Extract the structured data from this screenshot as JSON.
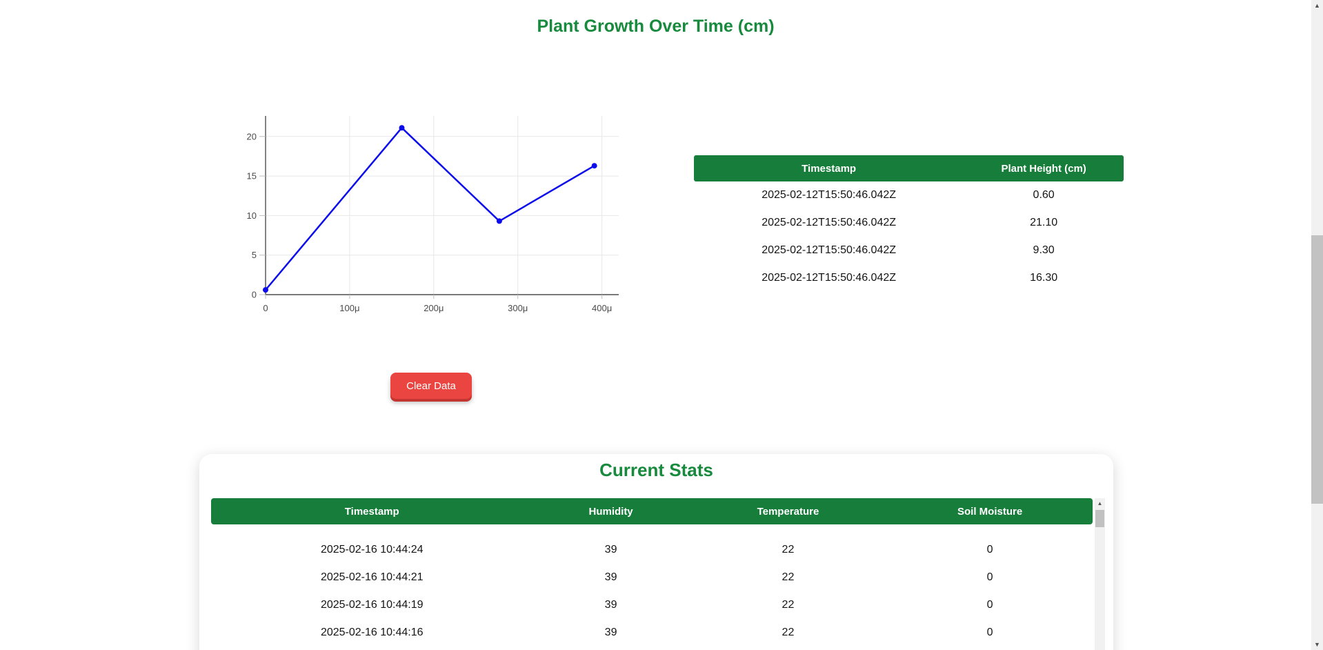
{
  "page": {
    "growth_title": "Plant Growth Over Time (cm)",
    "stats_title": "Current Stats",
    "clear_button_label": "Clear Data"
  },
  "colors": {
    "title_green": "#178a3d",
    "table_header_green": "#177d3a",
    "line_blue": "#0b0bec",
    "button_red": "#ea4540",
    "button_red_shadow": "#c23531"
  },
  "chart_data": {
    "type": "line",
    "title": "Plant Growth Over Time (cm)",
    "x_microseconds": [
      0,
      162,
      278,
      391
    ],
    "values": [
      0.6,
      21.1,
      9.3,
      16.3
    ],
    "x_tick_labels": [
      "0",
      "100μ",
      "200μ",
      "300μ",
      "400μ"
    ],
    "x_tick_values": [
      0,
      100,
      200,
      300,
      400
    ],
    "y_ticks": [
      0,
      5,
      10,
      15,
      20
    ],
    "xlim": [
      0,
      420
    ],
    "ylim": [
      0,
      22.6
    ],
    "grid": true,
    "legend": "none",
    "line_color": "#0b0bec"
  },
  "growth_table": {
    "headers": [
      "Timestamp",
      "Plant Height (cm)"
    ],
    "rows": [
      {
        "timestamp": "2025-02-12T15:50:46.042Z",
        "height": "0.60"
      },
      {
        "timestamp": "2025-02-12T15:50:46.042Z",
        "height": "21.10"
      },
      {
        "timestamp": "2025-02-12T15:50:46.042Z",
        "height": "9.30"
      },
      {
        "timestamp": "2025-02-12T15:50:46.042Z",
        "height": "16.30"
      }
    ]
  },
  "stats_table": {
    "headers": [
      "Timestamp",
      "Humidity",
      "Temperature",
      "Soil Moisture"
    ],
    "rows": [
      {
        "timestamp": "2025-02-16 10:44:24",
        "humidity": "39",
        "temperature": "22",
        "soil_moisture": "0"
      },
      {
        "timestamp": "2025-02-16 10:44:21",
        "humidity": "39",
        "temperature": "22",
        "soil_moisture": "0"
      },
      {
        "timestamp": "2025-02-16 10:44:19",
        "humidity": "39",
        "temperature": "22",
        "soil_moisture": "0"
      },
      {
        "timestamp": "2025-02-16 10:44:16",
        "humidity": "39",
        "temperature": "22",
        "soil_moisture": "0"
      }
    ]
  }
}
